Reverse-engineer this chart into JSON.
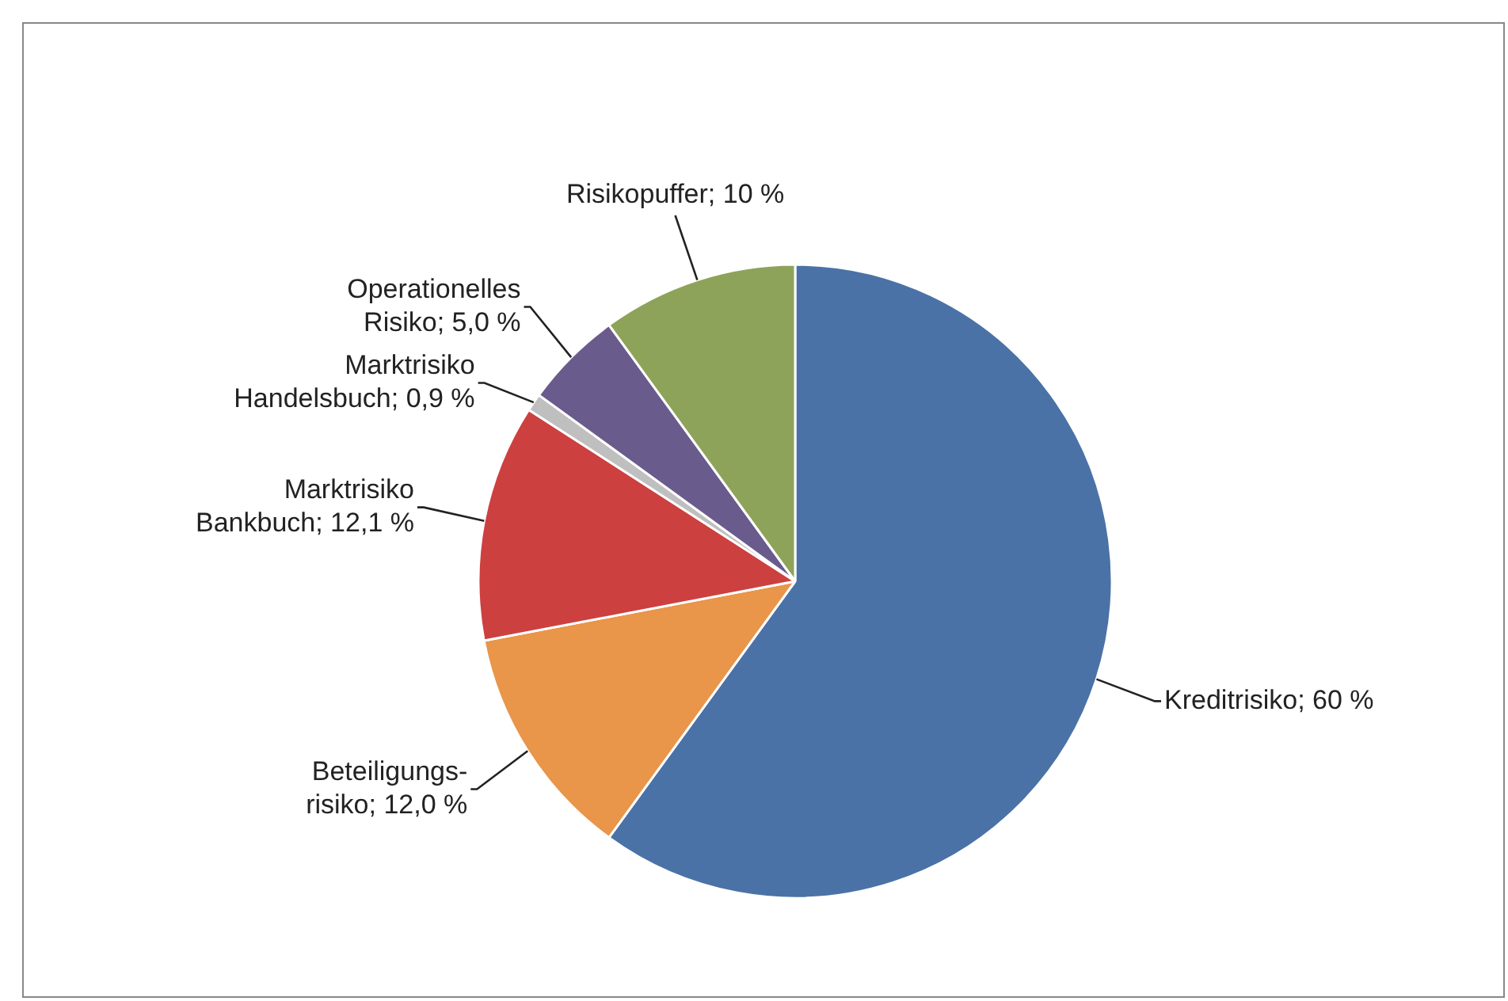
{
  "chart_data": {
    "type": "pie",
    "categories": [
      "Kreditrisiko",
      "Beteiligungs-risiko",
      "Marktrisiko Bankbuch",
      "Marktrisiko Handelsbuch",
      "Operationelles Risiko",
      "Risikopuffer"
    ],
    "values": [
      60,
      12.0,
      12.1,
      0.9,
      5.0,
      10
    ],
    "value_labels": [
      "60 %",
      "12,0 %",
      "12,1 %",
      "0,9 %",
      "5,0 %",
      "10 %"
    ],
    "colors": [
      "#4a72a6",
      "#e9954a",
      "#cd4040",
      "#bfbfbf",
      "#6a5b8d",
      "#8da35a"
    ],
    "legend": false
  }
}
